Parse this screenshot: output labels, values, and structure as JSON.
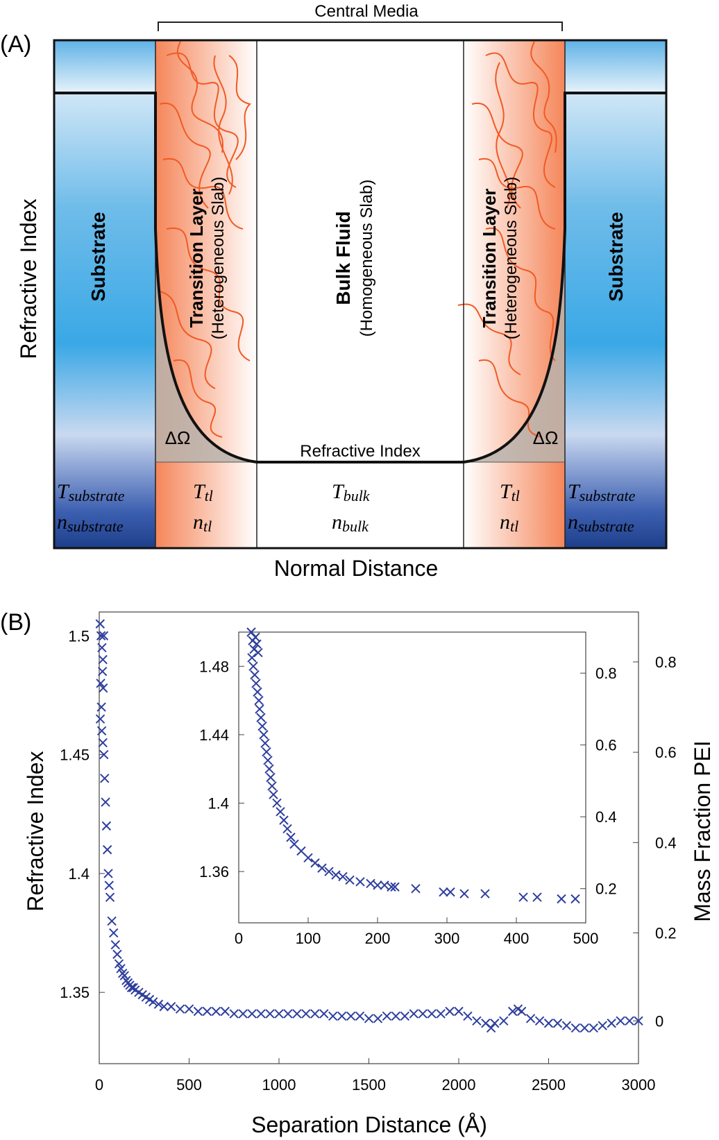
{
  "panel_a": {
    "label": "(A)",
    "central_media": "Central Media",
    "y_axis_label": "Refractive Index",
    "x_axis_label": "Normal Distance",
    "curve_label": "Refractive Index",
    "delta_omega": "ΔΩ",
    "substrate_label": "Substrate",
    "transition_title": "Transition Layer",
    "transition_sub": "(Heterogeneous Slab)",
    "bulk_title": "Bulk Fluid",
    "bulk_sub": "(Homogeneous Slab)",
    "row_T": {
      "substrate": "T",
      "substrate_sub": "substrate",
      "tl": "T",
      "tl_sub": "tl",
      "bulk": "T",
      "bulk_sub": "bulk"
    },
    "row_n": {
      "substrate": "n",
      "substrate_sub": "substrate",
      "tl": "n",
      "tl_sub": "tl",
      "bulk": "n",
      "bulk_sub": "bulk"
    },
    "colors": {
      "substrate_top": "#cfe6f7",
      "substrate_mid": "#3aa8e6",
      "substrate_bot": "#1d3f8a",
      "transition": "#f5865a",
      "fiber": "#f15a24",
      "omega_fill": "#b9b3ad"
    }
  },
  "chart_data": [
    {
      "type": "scatter",
      "panel": "(B)",
      "title": "",
      "xlabel": "Separation Distance (Å)",
      "ylabel": "Refractive Index",
      "y2label": "Mass Fraction PEI",
      "xlim": [
        0,
        3000
      ],
      "ylim": [
        1.32,
        1.51
      ],
      "xticks": [
        "0",
        "500",
        "1000",
        "1500",
        "2000",
        "2500",
        "3000"
      ],
      "yticks": [
        "1.35",
        "1.4",
        "1.45",
        "1.5"
      ],
      "ytick_values": [
        1.35,
        1.4,
        1.45,
        1.5
      ],
      "y2ticks": [
        "0",
        "0.2",
        "0.4",
        "0.6",
        "0.8"
      ],
      "y2tick_values": [
        1.338,
        1.375,
        1.413,
        1.451,
        1.489
      ],
      "marker": "x",
      "color": "#2e3f9e",
      "series": [
        {
          "name": "Refractive Index",
          "x": [
            5,
            10,
            15,
            20,
            25,
            8,
            12,
            18,
            22,
            6,
            14,
            20,
            26,
            30,
            35,
            40,
            45,
            50,
            55,
            60,
            70,
            80,
            90,
            100,
            110,
            120,
            130,
            140,
            150,
            160,
            170,
            180,
            190,
            200,
            220,
            240,
            260,
            280,
            300,
            330,
            360,
            400,
            450,
            500,
            550,
            600,
            650,
            700,
            750,
            800,
            850,
            900,
            950,
            1000,
            1050,
            1100,
            1150,
            1200,
            1250,
            1300,
            1350,
            1400,
            1450,
            1500,
            1550,
            1600,
            1650,
            1700,
            1750,
            1800,
            1850,
            1900,
            1950,
            2000,
            2050,
            2100,
            2150,
            2180,
            2200,
            2250,
            2300,
            2330,
            2350,
            2400,
            2450,
            2500,
            2550,
            2600,
            2650,
            2700,
            2750,
            2800,
            2850,
            2900,
            2950,
            3000
          ],
          "y": [
            1.505,
            1.5,
            1.495,
            1.49,
            1.5,
            1.48,
            1.47,
            1.485,
            1.478,
            1.465,
            1.46,
            1.455,
            1.45,
            1.44,
            1.43,
            1.42,
            1.41,
            1.4,
            1.395,
            1.39,
            1.38,
            1.375,
            1.37,
            1.366,
            1.362,
            1.36,
            1.358,
            1.357,
            1.355,
            1.354,
            1.353,
            1.352,
            1.352,
            1.351,
            1.35,
            1.349,
            1.348,
            1.347,
            1.346,
            1.345,
            1.344,
            1.344,
            1.343,
            1.343,
            1.342,
            1.342,
            1.342,
            1.342,
            1.341,
            1.341,
            1.341,
            1.341,
            1.341,
            1.341,
            1.341,
            1.341,
            1.341,
            1.341,
            1.341,
            1.34,
            1.34,
            1.34,
            1.34,
            1.339,
            1.339,
            1.34,
            1.34,
            1.34,
            1.341,
            1.341,
            1.341,
            1.341,
            1.342,
            1.342,
            1.34,
            1.338,
            1.337,
            1.335,
            1.337,
            1.338,
            1.342,
            1.343,
            1.342,
            1.339,
            1.338,
            1.337,
            1.337,
            1.336,
            1.335,
            1.335,
            1.335,
            1.336,
            1.337,
            1.338,
            1.338,
            1.338
          ]
        }
      ]
    },
    {
      "type": "scatter",
      "panel": "inset",
      "title": "",
      "xlabel": "",
      "ylabel": "",
      "xlim": [
        0,
        500
      ],
      "ylim": [
        1.33,
        1.5
      ],
      "xticks": [
        "0",
        "100",
        "200",
        "300",
        "400",
        "500"
      ],
      "yticks": [
        "1.36",
        "1.4",
        "1.44",
        "1.48"
      ],
      "ytick_values": [
        1.36,
        1.4,
        1.44,
        1.48
      ],
      "y2ticks": [
        "0.2",
        "0.4",
        "0.6",
        "0.8"
      ],
      "y2tick_values": [
        1.35,
        1.392,
        1.434,
        1.476
      ],
      "marker": "x",
      "color": "#2e3f9e",
      "series": [
        {
          "name": "Refractive Index",
          "x": [
            18,
            20,
            22,
            24,
            26,
            28,
            19,
            21,
            23,
            25,
            27,
            29,
            30,
            32,
            34,
            36,
            38,
            40,
            42,
            44,
            46,
            48,
            50,
            55,
            60,
            65,
            70,
            75,
            80,
            90,
            100,
            110,
            120,
            130,
            140,
            150,
            160,
            175,
            190,
            200,
            210,
            220,
            225,
            255,
            295,
            305,
            325,
            355,
            410,
            430,
            465,
            485
          ],
          "y": [
            1.5,
            1.495,
            1.49,
            1.497,
            1.493,
            1.488,
            1.485,
            1.48,
            1.475,
            1.47,
            1.465,
            1.46,
            1.455,
            1.45,
            1.445,
            1.44,
            1.435,
            1.43,
            1.425,
            1.42,
            1.415,
            1.41,
            1.405,
            1.4,
            1.395,
            1.39,
            1.385,
            1.38,
            1.376,
            1.372,
            1.368,
            1.365,
            1.362,
            1.36,
            1.358,
            1.357,
            1.355,
            1.354,
            1.353,
            1.352,
            1.352,
            1.351,
            1.351,
            1.35,
            1.348,
            1.348,
            1.347,
            1.347,
            1.345,
            1.345,
            1.344,
            1.344
          ]
        }
      ]
    }
  ]
}
